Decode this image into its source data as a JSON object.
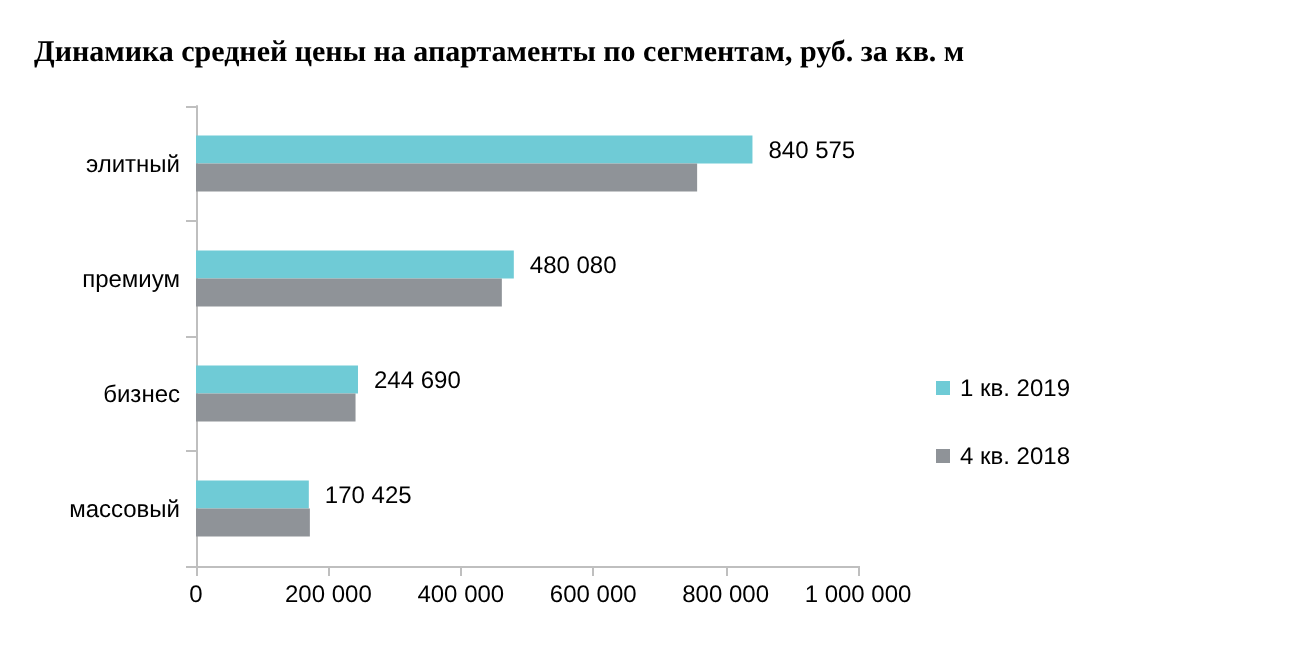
{
  "chart_data": {
    "type": "bar",
    "orientation": "horizontal",
    "title": "Динамика средней цены на апартаменты по сегментам, руб. за кв. м",
    "categories": [
      "элитный",
      "премиум",
      "бизнес",
      "массовый"
    ],
    "series": [
      {
        "name": "1 кв. 2019",
        "color": "#6fcbd6",
        "values": [
          840575,
          480080,
          244690,
          170425
        ],
        "value_labels": [
          "840 575",
          "480 080",
          "244 690",
          "170 425"
        ]
      },
      {
        "name": "4 кв. 2018",
        "color": "#8f9398",
        "values": [
          757000,
          462000,
          241000,
          172000
        ]
      }
    ],
    "xlim": [
      0,
      1000000
    ],
    "xticks": [
      0,
      {
        "value": 200000,
        "label": "200 000"
      },
      {
        "value": 400000,
        "label": "400 000"
      },
      {
        "value": 600000,
        "label": "600 000"
      },
      {
        "value": 800000,
        "label": "800 000"
      },
      {
        "value": 1000000,
        "label": "1 000 000"
      }
    ],
    "grid": false,
    "legend": "right"
  }
}
